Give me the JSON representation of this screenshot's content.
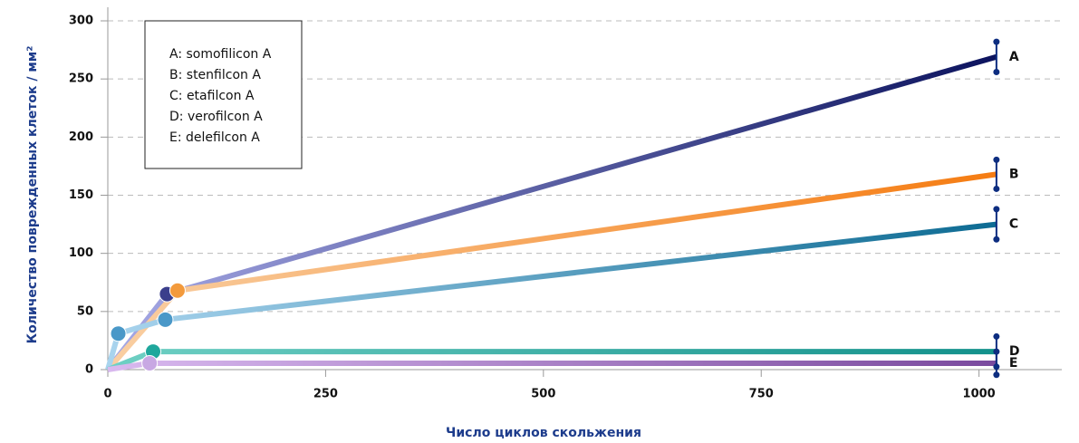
{
  "chart_data": {
    "type": "line",
    "y_label": "Количество поврежденных клеток / мм²",
    "x_label": "Число циклов скольжения",
    "xlim": [
      0,
      1095
    ],
    "ylim": [
      0,
      300
    ],
    "xticks": [
      0,
      250,
      500,
      750,
      1000
    ],
    "yticks": [
      0,
      50,
      100,
      150,
      200,
      250,
      300
    ],
    "grid": true,
    "series": [
      {
        "label": "A",
        "name": "A: somofilicon A",
        "color_start": "#a6a9e6",
        "color": "#0c135e",
        "marker_color": "#3b3f8c",
        "x": [
          0,
          68,
          1020
        ],
        "y": [
          0,
          65,
          269
        ],
        "error": 13
      },
      {
        "label": "B",
        "name": "B: stenfilcon A",
        "color_start": "#f9cfa3",
        "color": "#f57c12",
        "marker_color": "#f39a3c",
        "x": [
          0,
          80,
          1020
        ],
        "y": [
          0,
          68,
          168
        ],
        "error": 12.5
      },
      {
        "label": "C",
        "name": "C: etafilcon A",
        "color_start": "#a9d4ee",
        "color": "#0d6b93",
        "marker_color": "#4a98c8",
        "x": [
          0,
          12,
          66,
          1020
        ],
        "y": [
          0,
          31,
          43,
          125
        ],
        "error": 13
      },
      {
        "label": "D",
        "name": "D: verofilcon A",
        "color_start": "#6fd0c4",
        "color": "#13918b",
        "marker_color": "#1fa79c",
        "x": [
          0,
          52,
          1020
        ],
        "y": [
          0,
          15.5,
          15.5
        ],
        "error": 13
      },
      {
        "label": "E",
        "name": "E: delefilcon A",
        "color_start": "#d9b9ef",
        "color": "#7a4a9e",
        "marker_color": "#c8a8e3",
        "x": [
          0,
          48,
          1020
        ],
        "y": [
          0,
          5.5,
          5.5
        ],
        "error": 10
      }
    ]
  }
}
